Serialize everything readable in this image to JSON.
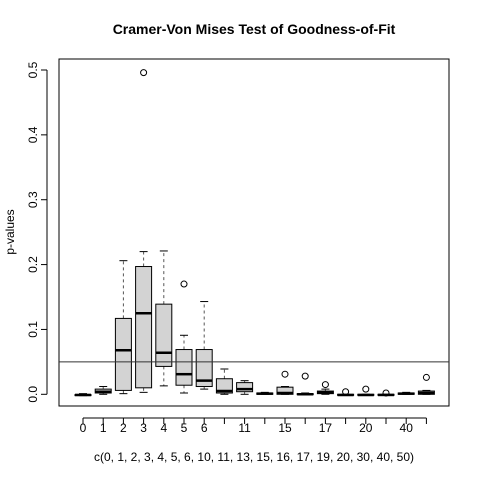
{
  "chart_data": {
    "type": "boxplot",
    "title": "Cramer-Von Mises Test of Goodness-of-Fit",
    "xlabel": "c(0, 1, 2, 3, 4, 5, 6, 10, 11, 13, 15, 16, 17, 19, 20, 30, 40, 50)",
    "ylabel": "p-values",
    "ylim": [
      -0.02,
      0.52
    ],
    "y_ticks": [
      0.0,
      0.1,
      0.2,
      0.3,
      0.4,
      0.5
    ],
    "y_tick_labels": [
      "0.0",
      "0.1",
      "0.2",
      "0.3",
      "0.4",
      "0.5"
    ],
    "reference_line": 0.05,
    "categories": [
      "0",
      "1",
      "2",
      "3",
      "4",
      "5",
      "6",
      "10",
      "11",
      "13",
      "15",
      "16",
      "17",
      "19",
      "20",
      "30",
      "40",
      "50"
    ],
    "x_tick_labels_shown": [
      "0",
      "1",
      "2",
      "3",
      "4",
      "5",
      "6",
      "11",
      "15",
      "17",
      "20",
      "40"
    ],
    "boxes": [
      {
        "category": "0",
        "whisker_low": -0.002,
        "q1": -0.0015,
        "median": -0.001,
        "q3": -0.0005,
        "whisker_high": 0.001,
        "outliers": []
      },
      {
        "category": "1",
        "whisker_low": 0.0,
        "q1": 0.002,
        "median": 0.004,
        "q3": 0.008,
        "whisker_high": 0.012,
        "outliers": []
      },
      {
        "category": "2",
        "whisker_low": 0.001,
        "q1": 0.006,
        "median": 0.068,
        "q3": 0.117,
        "whisker_high": 0.206,
        "outliers": []
      },
      {
        "category": "3",
        "whisker_low": 0.003,
        "q1": 0.01,
        "median": 0.125,
        "q3": 0.197,
        "whisker_high": 0.22,
        "outliers": [
          0.496
        ]
      },
      {
        "category": "4",
        "whisker_low": 0.013,
        "q1": 0.043,
        "median": 0.064,
        "q3": 0.139,
        "whisker_high": 0.221,
        "outliers": []
      },
      {
        "category": "5",
        "whisker_low": 0.002,
        "q1": 0.014,
        "median": 0.031,
        "q3": 0.069,
        "whisker_high": 0.091,
        "outliers": [
          0.17
        ]
      },
      {
        "category": "6",
        "whisker_low": 0.008,
        "q1": 0.012,
        "median": 0.021,
        "q3": 0.069,
        "whisker_high": 0.143,
        "outliers": []
      },
      {
        "category": "10",
        "whisker_low": 0.0,
        "q1": 0.002,
        "median": 0.005,
        "q3": 0.024,
        "whisker_high": 0.039,
        "outliers": []
      },
      {
        "category": "11",
        "whisker_low": 0.0,
        "q1": 0.004,
        "median": 0.008,
        "q3": 0.018,
        "whisker_high": 0.021,
        "outliers": []
      },
      {
        "category": "13",
        "whisker_low": 0.0,
        "q1": 0.0,
        "median": 0.001,
        "q3": 0.002,
        "whisker_high": 0.003,
        "outliers": []
      },
      {
        "category": "15",
        "whisker_low": 0.0,
        "q1": 0.0,
        "median": 0.002,
        "q3": 0.011,
        "whisker_high": 0.012,
        "outliers": [
          0.031
        ]
      },
      {
        "category": "16",
        "whisker_low": 0.0,
        "q1": 0.0,
        "median": 0.0,
        "q3": 0.001,
        "whisker_high": 0.002,
        "outliers": [
          0.028
        ]
      },
      {
        "category": "17",
        "whisker_low": 0.0,
        "q1": 0.001,
        "median": 0.003,
        "q3": 0.005,
        "whisker_high": 0.008,
        "outliers": [
          0.015
        ]
      },
      {
        "category": "19",
        "whisker_low": -0.001,
        "q1": -0.001,
        "median": -0.001,
        "q3": 0.0,
        "whisker_high": 0.0,
        "outliers": [
          0.004
        ]
      },
      {
        "category": "20",
        "whisker_low": -0.001,
        "q1": -0.001,
        "median": -0.001,
        "q3": 0.0,
        "whisker_high": 0.0,
        "outliers": [
          0.008
        ]
      },
      {
        "category": "30",
        "whisker_low": -0.001,
        "q1": -0.001,
        "median": -0.001,
        "q3": 0.0,
        "whisker_high": 0.0,
        "outliers": [
          0.002
        ]
      },
      {
        "category": "40",
        "whisker_low": 0.0,
        "q1": 0.0,
        "median": 0.001,
        "q3": 0.002,
        "whisker_high": 0.003,
        "outliers": []
      },
      {
        "category": "50",
        "whisker_low": 0.0,
        "q1": 0.0,
        "median": 0.002,
        "q3": 0.005,
        "whisker_high": 0.006,
        "outliers": [
          0.026
        ]
      }
    ],
    "colors": {
      "box_fill": "#d3d3d3",
      "stroke": "#000000",
      "whisker": "#555555",
      "background": "#ffffff"
    }
  }
}
